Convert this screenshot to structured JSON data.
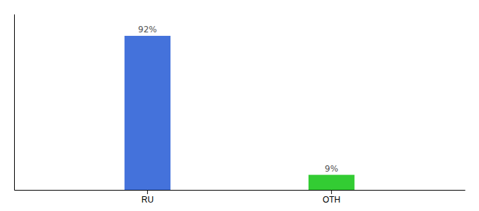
{
  "chart_data": {
    "type": "bar",
    "categories": [
      "RU",
      "OTH"
    ],
    "values": [
      92,
      9
    ],
    "value_labels": [
      "92%",
      "9%"
    ],
    "colors": [
      "#4472db",
      "#33cc33"
    ],
    "ylim": [
      0,
      105
    ],
    "data_labels": true,
    "grid": false,
    "tick_labels": "x"
  }
}
